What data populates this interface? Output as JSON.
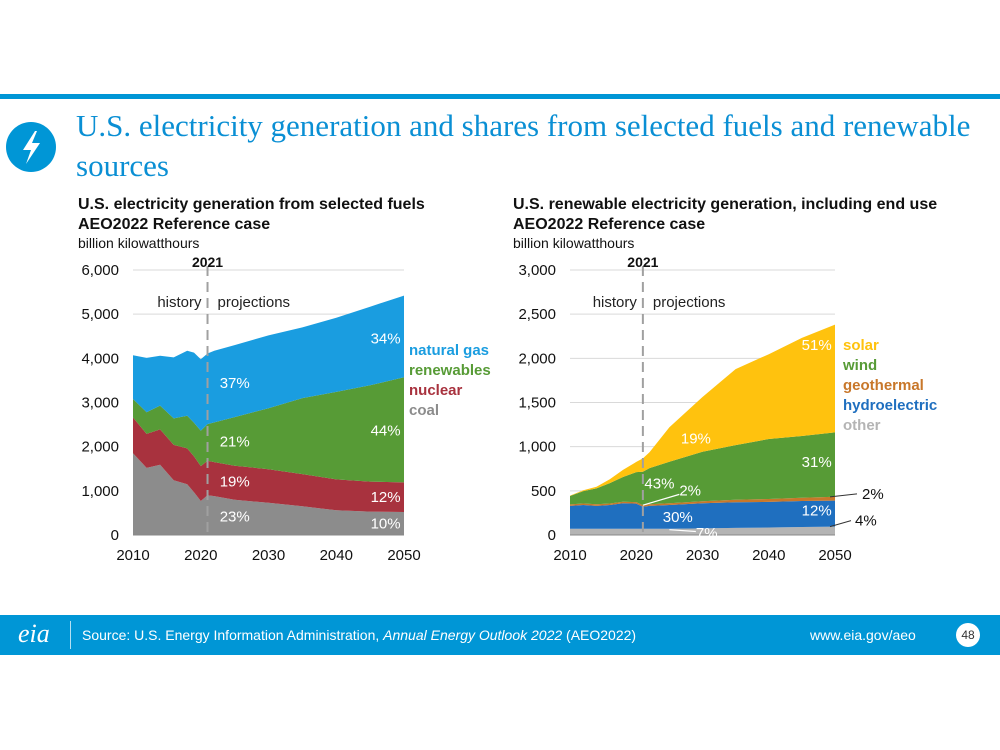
{
  "slide": {
    "title": "U.S. electricity generation and shares from selected fuels and renewable sources",
    "icon": "lightning-bolt-icon",
    "accent_color": "#0096d6"
  },
  "footer": {
    "source_prefix": "Source: U.S. Energy Information Administration, ",
    "source_italic": "Annual Energy Outlook 2022",
    "source_suffix": " (AEO2022)",
    "website": "www.eia.gov/aeo",
    "page_number": "48",
    "logo_text": "eia"
  },
  "chart_data": [
    {
      "type": "area",
      "stacked": true,
      "title": "U.S. electricity generation from selected fuels",
      "subtitle": "AEO2022 Reference case",
      "ylabel": "billion kilowatthours",
      "ylim": [
        0,
        6000
      ],
      "yticks": [
        0,
        1000,
        2000,
        3000,
        4000,
        5000,
        6000
      ],
      "ytick_labels": [
        "0",
        "1,000",
        "2,000",
        "3,000",
        "4,000",
        "5,000",
        "6,000"
      ],
      "xlim": [
        2010,
        2050
      ],
      "xticks": [
        2010,
        2020,
        2030,
        2040,
        2050
      ],
      "divider_year": 2021,
      "divider_label": "2021",
      "history_label": "history",
      "projections_label": "projections",
      "x": [
        2010,
        2012,
        2014,
        2016,
        2018,
        2019,
        2020,
        2021,
        2022,
        2025,
        2030,
        2035,
        2040,
        2045,
        2050
      ],
      "series": [
        {
          "name": "coal",
          "color": "#8c8c8c",
          "values": [
            1850,
            1520,
            1590,
            1240,
            1150,
            970,
            770,
            900,
            880,
            800,
            730,
            650,
            560,
            530,
            520
          ]
        },
        {
          "name": "nuclear",
          "color": "#a8323e",
          "values": [
            810,
            770,
            800,
            800,
            810,
            810,
            790,
            780,
            770,
            770,
            760,
            730,
            700,
            680,
            670
          ]
        },
        {
          "name": "renewables",
          "color": "#579b36",
          "values": [
            420,
            490,
            540,
            600,
            740,
            760,
            800,
            830,
            900,
            1100,
            1380,
            1720,
            1980,
            2180,
            2380
          ]
        },
        {
          "name": "natural gas",
          "color": "#1a9de0",
          "values": [
            990,
            1230,
            1130,
            1380,
            1470,
            1590,
            1620,
            1600,
            1620,
            1630,
            1650,
            1600,
            1680,
            1780,
            1850
          ]
        }
      ],
      "legend": [
        "natural gas",
        "renewables",
        "nuclear",
        "coal"
      ],
      "share_labels_2021": [
        "37%",
        "21%",
        "19%",
        "23%"
      ],
      "share_labels_2050": [
        "34%",
        "44%",
        "12%",
        "10%"
      ]
    },
    {
      "type": "area",
      "stacked": true,
      "title": "U.S. renewable electricity generation, including end use",
      "subtitle": "AEO2022 Reference case",
      "ylabel": "billion kilowatthours",
      "ylim": [
        0,
        3000
      ],
      "yticks": [
        0,
        500,
        1000,
        1500,
        2000,
        2500,
        3000
      ],
      "ytick_labels": [
        "0",
        "500",
        "1,000",
        "1,500",
        "2,000",
        "2,500",
        "3,000"
      ],
      "xlim": [
        2010,
        2050
      ],
      "xticks": [
        2010,
        2020,
        2030,
        2040,
        2050
      ],
      "divider_year": 2021,
      "divider_label": "2021",
      "history_label": "history",
      "projections_label": "projections",
      "x": [
        2010,
        2012,
        2014,
        2016,
        2018,
        2020,
        2021,
        2022,
        2025,
        2030,
        2035,
        2040,
        2045,
        2050
      ],
      "series": [
        {
          "name": "other",
          "color": "#b4b4b4",
          "values": [
            70,
            70,
            70,
            70,
            70,
            70,
            70,
            70,
            70,
            75,
            80,
            85,
            90,
            95
          ]
        },
        {
          "name": "hydroelectric",
          "color": "#1f6fbf",
          "values": [
            260,
            270,
            260,
            270,
            290,
            285,
            250,
            260,
            270,
            285,
            290,
            290,
            295,
            295
          ]
        },
        {
          "name": "geothermal",
          "color": "#c8772a",
          "values": [
            16,
            17,
            17,
            17,
            17,
            17,
            17,
            17,
            20,
            22,
            28,
            32,
            36,
            42
          ]
        },
        {
          "name": "wind",
          "color": "#579b36",
          "values": [
            95,
            140,
            180,
            230,
            280,
            340,
            380,
            410,
            470,
            560,
            620,
            680,
            700,
            730
          ]
        },
        {
          "name": "solar",
          "color": "#ffc20e",
          "values": [
            5,
            10,
            20,
            45,
            80,
            115,
            150,
            180,
            390,
            620,
            860,
            960,
            1110,
            1220
          ]
        }
      ],
      "legend": [
        "solar",
        "wind",
        "geothermal",
        "hydroelectric",
        "other"
      ],
      "share_labels_2021": [
        "19%",
        "43%",
        "2%",
        "30%",
        "7%"
      ],
      "share_labels_2050": [
        "51%",
        "31%",
        "2%",
        "12%",
        "4%"
      ]
    }
  ]
}
